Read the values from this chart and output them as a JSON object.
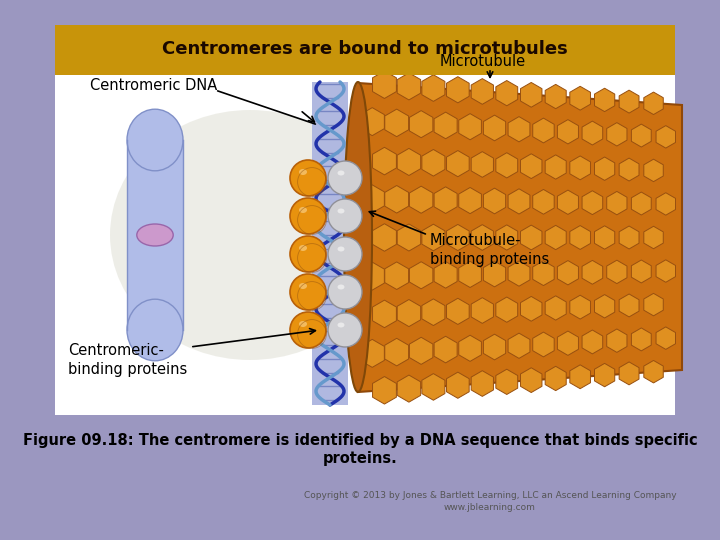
{
  "figure_caption_line1": "Figure 09.18: The centromere is identified by a DNA sequence that binds specific",
  "figure_caption_line2": "proteins.",
  "copyright_line1": "Copyright © 2013 by Jones & Bartlett Learning, LLC an Ascend Learning Company",
  "copyright_line2": "www.jblearning.com",
  "title_box_text": "Centromeres are bound to microtubules",
  "title_box_color": "#C8940A",
  "title_text_color": "#1a0800",
  "background_color": "#9B97C0",
  "label_centromeric_dna": "Centromeric DNA",
  "label_microtubule": "Microtubule",
  "label_microtubule_binding": "Microtubule-\nbinding proteins",
  "label_centromeric_binding": "Centromeric-\nbinding proteins",
  "fig_width": 7.2,
  "fig_height": 5.4,
  "dpi": 100,
  "caption_fontsize": 10.5,
  "copyright_fontsize": 6.5,
  "label_fontsize": 10.5,
  "title_fontsize": 13
}
